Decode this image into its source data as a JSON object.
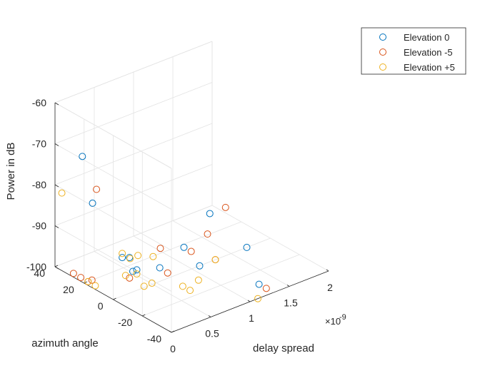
{
  "chart_data": {
    "type": "scatter",
    "is_3d": true,
    "xlabel": "delay spread",
    "ylabel": "azimuth angle",
    "zlabel": "Power in dB",
    "x_multiplier_label": "×10",
    "x_multiplier_exponent": "-9",
    "x_ticks": [
      "0",
      "0.5",
      "1",
      "1.5",
      "2"
    ],
    "y_ticks": [
      "-40",
      "-20",
      "0",
      "20",
      "40"
    ],
    "z_ticks": [
      "-100",
      "-90",
      "-80",
      "-70",
      "-60"
    ],
    "xlim": [
      0,
      2e-09
    ],
    "ylim": [
      -40,
      40
    ],
    "zlim": [
      -100,
      -60
    ],
    "grid": true,
    "legend_position": "top-right",
    "series": [
      {
        "name": "Elevation 0",
        "color": "#0072BD",
        "points": [
          {
            "x": 2e-10,
            "y": 32,
            "z": -73
          },
          {
            "x": 2e-10,
            "y": 25,
            "z": -83
          },
          {
            "x": 3e-10,
            "y": 10,
            "z": -94
          },
          {
            "x": 3e-10,
            "y": 5,
            "z": -93
          },
          {
            "x": 2.5e-10,
            "y": 0,
            "z": -95
          },
          {
            "x": 3e-10,
            "y": 0,
            "z": -95
          },
          {
            "x": 5e-10,
            "y": -5,
            "z": -95
          },
          {
            "x": 9e-10,
            "y": 0,
            "z": -94
          },
          {
            "x": 1.1e-09,
            "y": 0,
            "z": -100
          },
          {
            "x": 1.6e-09,
            "y": 20,
            "z": -95
          },
          {
            "x": 1.7e-09,
            "y": 0,
            "z": -100
          },
          {
            "x": 1.3e-09,
            "y": -30,
            "z": -100
          }
        ]
      },
      {
        "name": "Elevation -5",
        "color": "#D95319",
        "points": [
          {
            "x": 2.5e-10,
            "y": 25,
            "z": -80
          },
          {
            "x": 6e-10,
            "y": 0,
            "z": -92
          },
          {
            "x": 5e-11,
            "y": 30,
            "z": -100
          },
          {
            "x": 5e-11,
            "y": 25,
            "z": -100
          },
          {
            "x": 5e-11,
            "y": 20,
            "z": -100
          },
          {
            "x": 1e-10,
            "y": 20,
            "z": -100
          },
          {
            "x": 3e-10,
            "y": 5,
            "z": -98
          },
          {
            "x": 6e-10,
            "y": -5,
            "z": -97
          },
          {
            "x": 9e-10,
            "y": -5,
            "z": -94
          },
          {
            "x": 1.2e-09,
            "y": 0,
            "z": -93
          },
          {
            "x": 1.3e-09,
            "y": 0,
            "z": -100
          },
          {
            "x": 1.8e-09,
            "y": 20,
            "z": -95
          },
          {
            "x": 1.3e-09,
            "y": -35,
            "z": -100
          }
        ]
      },
      {
        "name": "Elevation +5",
        "color": "#EDB120",
        "points": [
          {
            "x": 5e-11,
            "y": 38,
            "z": -82
          },
          {
            "x": 3e-10,
            "y": 10,
            "z": -93
          },
          {
            "x": 4e-10,
            "y": 10,
            "z": -95
          },
          {
            "x": 5e-10,
            "y": 10,
            "z": -95
          },
          {
            "x": 6e-10,
            "y": 5,
            "z": -95
          },
          {
            "x": 3e-10,
            "y": 0,
            "z": -96
          },
          {
            "x": 2.5e-10,
            "y": 5,
            "z": -97
          },
          {
            "x": 3e-10,
            "y": -5,
            "z": -98
          },
          {
            "x": 4e-10,
            "y": -5,
            "z": -98
          },
          {
            "x": 5e-11,
            "y": 20,
            "z": -100
          },
          {
            "x": 5e-11,
            "y": 15,
            "z": -100
          },
          {
            "x": 7e-10,
            "y": -10,
            "z": -100
          },
          {
            "x": 7e-10,
            "y": -15,
            "z": -100
          },
          {
            "x": 9e-10,
            "y": -10,
            "z": -100
          },
          {
            "x": 1.3e-09,
            "y": 0,
            "z": -100
          },
          {
            "x": 1.1e-09,
            "y": -40,
            "z": -100
          }
        ]
      }
    ]
  }
}
